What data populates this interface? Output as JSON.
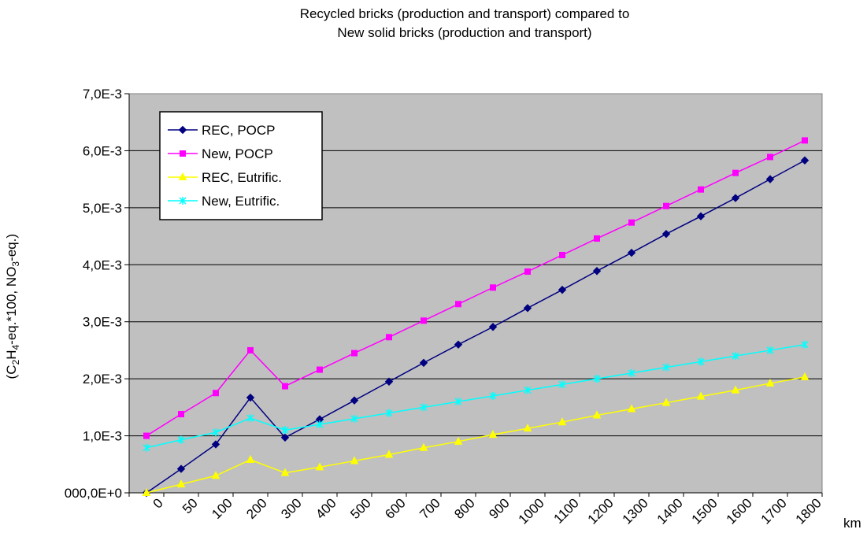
{
  "chart_data": {
    "type": "line",
    "title_line1": "Recycled bricks (production and transport) compared to",
    "title_line2": "New solid bricks (production and transport)",
    "ylabel_parts": [
      "(C",
      "2",
      "H",
      "4",
      "-eq.*100, NO",
      "3",
      "-eq.)"
    ],
    "xlabel": "km",
    "categories": [
      "0",
      "50",
      "100",
      "200",
      "300",
      "400",
      "500",
      "600",
      "700",
      "800",
      "900",
      "1000",
      "1100",
      "1200",
      "1300",
      "1400",
      "1500",
      "1600",
      "1700",
      "1800"
    ],
    "y_tick_labels": [
      "000,0E+0",
      "1,0E-3",
      "2,0E-3",
      "3,0E-3",
      "4,0E-3",
      "5,0E-3",
      "6,0E-3",
      "7,0E-3"
    ],
    "ylim": [
      0,
      0.007
    ],
    "grid": true,
    "legend_position": "top-left",
    "plot_background": "#c0c0c0",
    "series": [
      {
        "name": "REC, POCP",
        "color": "#000080",
        "marker": "diamond",
        "values": [
          0.0,
          0.00042,
          0.00085,
          0.00167,
          0.00097,
          0.00129,
          0.00162,
          0.00195,
          0.00228,
          0.0026,
          0.00291,
          0.00324,
          0.00356,
          0.00389,
          0.00421,
          0.00454,
          0.00485,
          0.00517,
          0.0055,
          0.00583
        ]
      },
      {
        "name": "New, POCP",
        "color": "#ff00ff",
        "marker": "square",
        "values": [
          0.001,
          0.00138,
          0.00175,
          0.0025,
          0.00187,
          0.00216,
          0.00245,
          0.00273,
          0.00302,
          0.00331,
          0.0036,
          0.00388,
          0.00417,
          0.00446,
          0.00474,
          0.00503,
          0.00532,
          0.00561,
          0.00589,
          0.00618
        ]
      },
      {
        "name": "REC, Eutrific.",
        "color": "#ffff00",
        "marker": "triangle",
        "values": [
          0.0,
          0.00015,
          0.0003,
          0.00058,
          0.00035,
          0.00045,
          0.00056,
          0.00067,
          0.00079,
          0.0009,
          0.00102,
          0.00113,
          0.00124,
          0.00136,
          0.00147,
          0.00158,
          0.00169,
          0.0018,
          0.00192,
          0.00203
        ]
      },
      {
        "name": "New, Eutrific.",
        "color": "#00ffff",
        "marker": "star",
        "values": [
          0.00079,
          0.00093,
          0.00106,
          0.00131,
          0.0011,
          0.0012,
          0.0013,
          0.0014,
          0.0015,
          0.0016,
          0.0017,
          0.0018,
          0.0019,
          0.002,
          0.0021,
          0.0022,
          0.0023,
          0.0024,
          0.0025,
          0.0026
        ]
      }
    ]
  }
}
